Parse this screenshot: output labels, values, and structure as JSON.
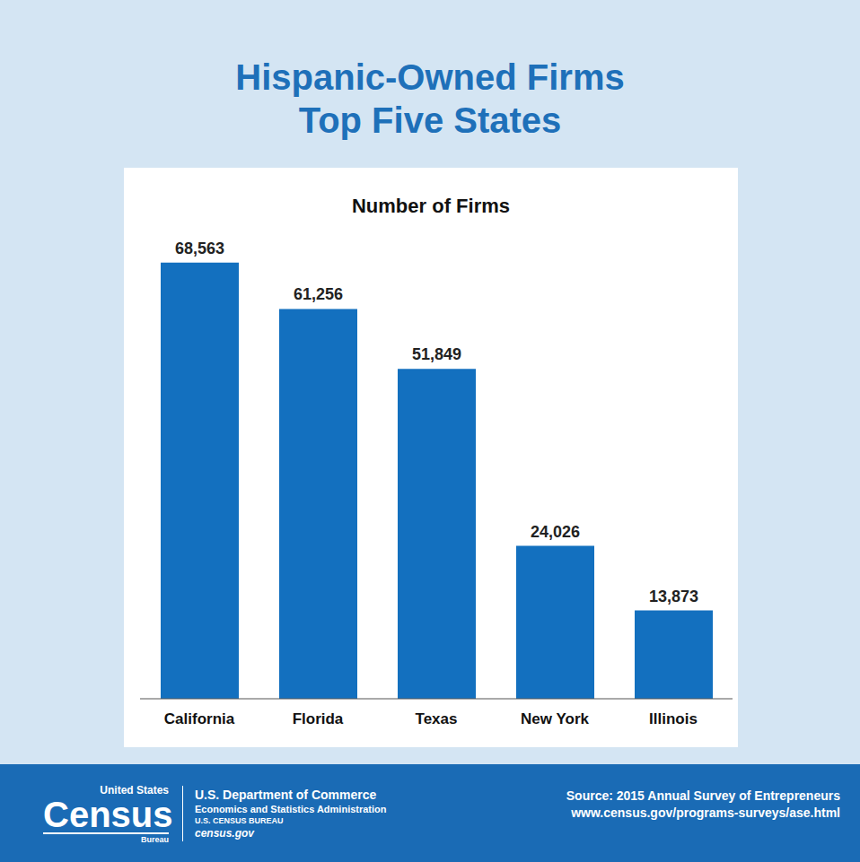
{
  "chart_data": {
    "type": "bar",
    "title": "Hispanic-Owned Firms Top Five States",
    "subtitle": "Number of Firms",
    "categories": [
      "California",
      "Florida",
      "Texas",
      "New York",
      "Illinois"
    ],
    "values": [
      68563,
      61256,
      51849,
      24026,
      13873
    ],
    "value_labels": [
      "68,563",
      "61,256",
      "51,849",
      "24,026",
      "13,873"
    ],
    "data_labels": true,
    "color": "#1370bf",
    "ylim": [
      0,
      75000
    ],
    "grid": false,
    "tick_labels": "x"
  },
  "footer": {
    "logo": [
      "United States",
      "Census",
      "Bureau"
    ],
    "agency": [
      "U.S. Department of Commerce",
      "Economics and Statistics Administration",
      "U.S. CENSUS BUREAU",
      "census.gov"
    ],
    "source": [
      "Source: 2015 Annual Survey of Entrepreneurs",
      "www.census.gov/programs-surveys/ase.html"
    ]
  }
}
